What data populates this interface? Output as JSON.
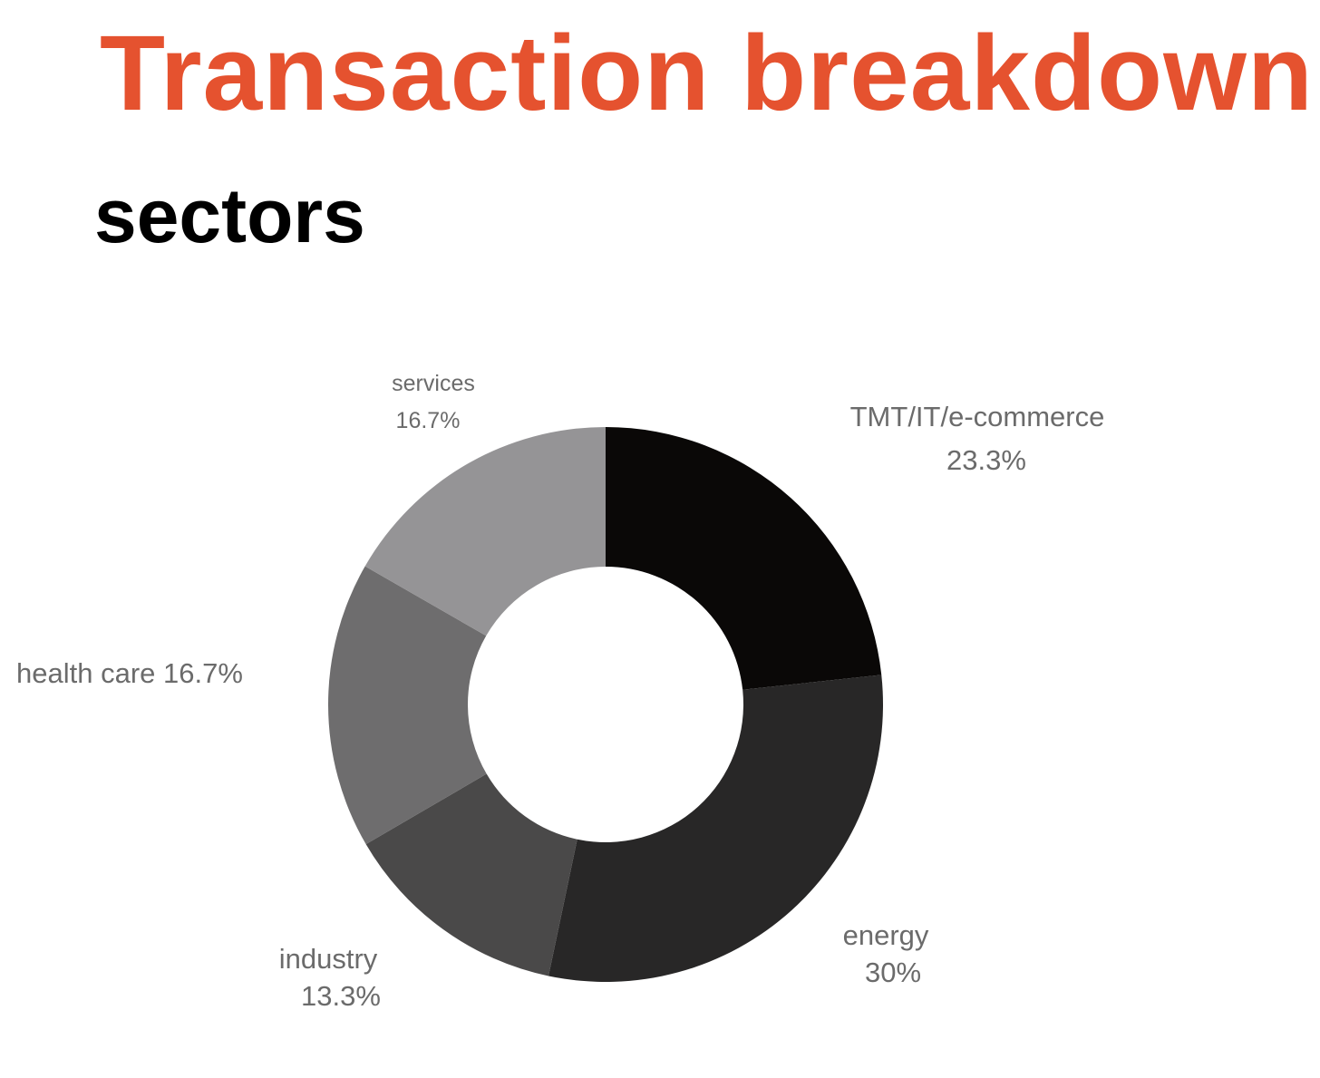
{
  "title": "Transaction breakdown",
  "subtitle": "sectors",
  "colors": {
    "title": "#e5522f",
    "label": "#6b6b6b"
  },
  "chart_data": {
    "type": "pie",
    "donut": true,
    "slices": [
      {
        "label": "TMT/IT/e-commerce",
        "value_label": "23.3%",
        "value": 23.3,
        "color": "#0a0807"
      },
      {
        "label": "energy",
        "value_label": "30%",
        "value": 30,
        "color": "#282727"
      },
      {
        "label": "industry",
        "value_label": "13.3%",
        "value": 13.3,
        "color": "#4a4949"
      },
      {
        "label": "health care",
        "value_label": "16.7%",
        "value": 16.7,
        "color": "#6e6d6e"
      },
      {
        "label": "services",
        "value_label": "16.7%",
        "value": 16.7,
        "color": "#959496"
      }
    ]
  }
}
